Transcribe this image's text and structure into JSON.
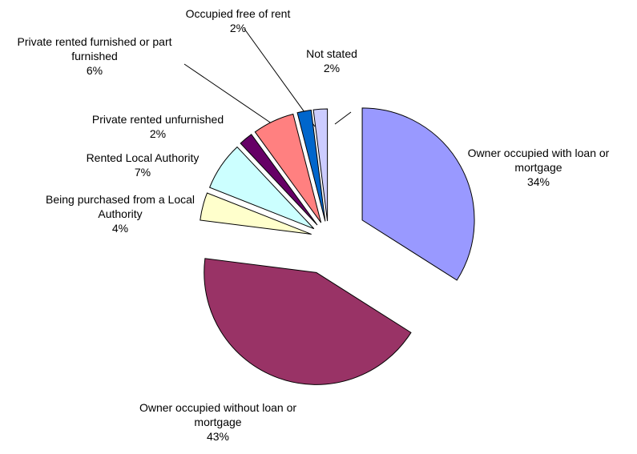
{
  "chart_data": {
    "type": "pie",
    "categories": [
      "Owner occupied with loan or mortgage",
      "Owner occupied without loan or mortgage",
      "Being purchased from a Local Authority",
      "Rented Local Authority",
      "Private rented unfurnished",
      "Private rented furnished or part furnished",
      "Occupied free of rent",
      "Not stated"
    ],
    "values": [
      34,
      43,
      4,
      7,
      2,
      6,
      2,
      2
    ],
    "value_labels": [
      "34%",
      "43%",
      "4%",
      "7%",
      "2%",
      "6%",
      "2%",
      "2%"
    ],
    "colors": [
      "#9999ff",
      "#993366",
      "#ffffcc",
      "#ccffff",
      "#660066",
      "#ff8080",
      "#0066cc",
      "#ccccff"
    ]
  }
}
